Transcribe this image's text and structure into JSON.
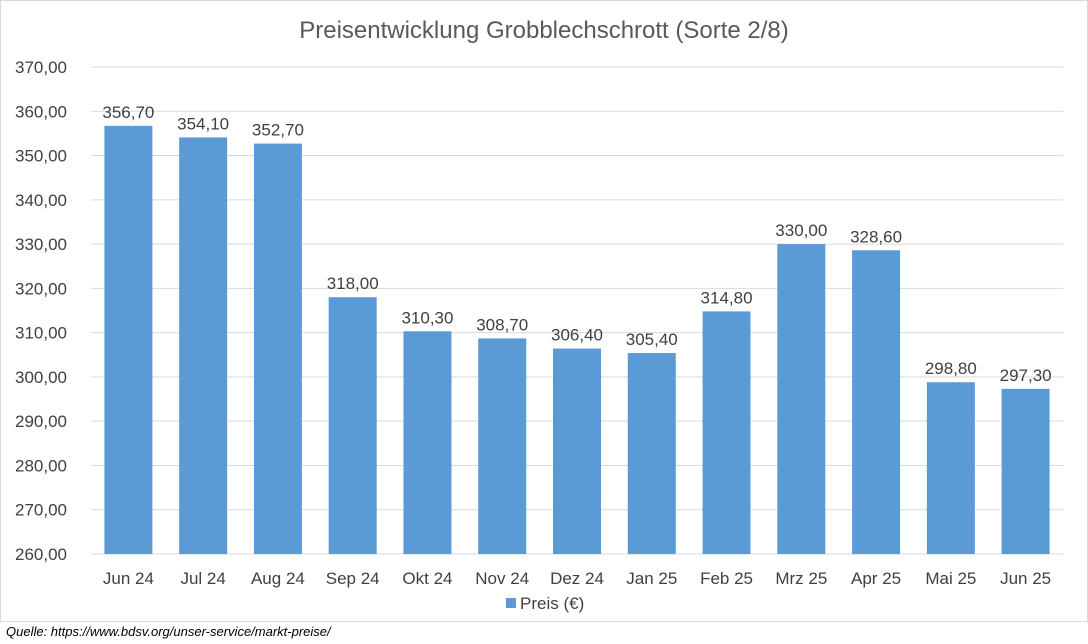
{
  "chart_data": {
    "type": "bar",
    "title": "Preisentwicklung Grobblechschrott (Sorte 2/8)",
    "xlabel": "",
    "ylabel": "",
    "categories": [
      "Jun 24",
      "Jul 24",
      "Aug 24",
      "Sep 24",
      "Okt 24",
      "Nov 24",
      "Dez 24",
      "Jan 25",
      "Feb 25",
      "Mrz 25",
      "Apr 25",
      "Mai 25",
      "Jun 25"
    ],
    "series": [
      {
        "name": "Preis (€)",
        "values": [
          356.7,
          354.1,
          352.7,
          318.0,
          310.3,
          308.7,
          306.4,
          305.4,
          314.8,
          330.0,
          328.6,
          298.8,
          297.3
        ],
        "labels": [
          "356,70",
          "354,10",
          "352,70",
          "318,00",
          "310,30",
          "308,70",
          "306,40",
          "305,40",
          "314,80",
          "330,00",
          "328,60",
          "298,80",
          "297,30"
        ]
      }
    ],
    "ylim": [
      260,
      370
    ],
    "yticks": [
      260,
      270,
      280,
      290,
      300,
      310,
      320,
      330,
      340,
      350,
      360,
      370
    ],
    "ytick_labels": [
      "260,00",
      "270,00",
      "280,00",
      "290,00",
      "300,00",
      "310,00",
      "320,00",
      "330,00",
      "340,00",
      "350,00",
      "360,00",
      "370,00"
    ],
    "grid": true,
    "legend_position": "bottom",
    "colors": {
      "bar": "#5b9bd5",
      "grid": "#d9d9d9",
      "text": "#404040",
      "title": "#595959"
    }
  },
  "source_note": "Quelle: https://www.bdsv.org/unser-service/markt-preise/"
}
